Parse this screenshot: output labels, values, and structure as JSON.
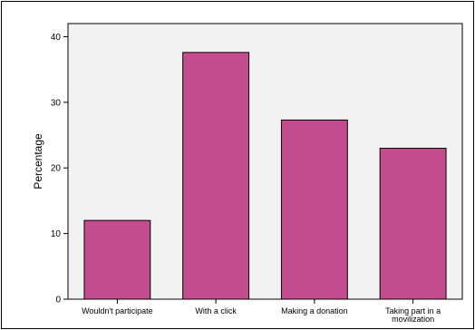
{
  "chart_data": {
    "type": "bar",
    "categories": [
      "Wouldn't participate",
      "With a click",
      "Making a donation",
      "Taking part in a movilization"
    ],
    "category_lines": [
      [
        "Wouldn't participate"
      ],
      [
        "With a click"
      ],
      [
        "Making a donation"
      ],
      [
        "Taking part in a",
        "movilization"
      ]
    ],
    "values": [
      12,
      37.6,
      27.3,
      23
    ],
    "ylabel": "Percentage",
    "xlabel": "",
    "ylim": [
      0,
      42
    ],
    "yticks": [
      0,
      10,
      20,
      30,
      40
    ],
    "bar_color": "#c44d8f",
    "plot_background": "#f2f2f2",
    "grid": false
  }
}
